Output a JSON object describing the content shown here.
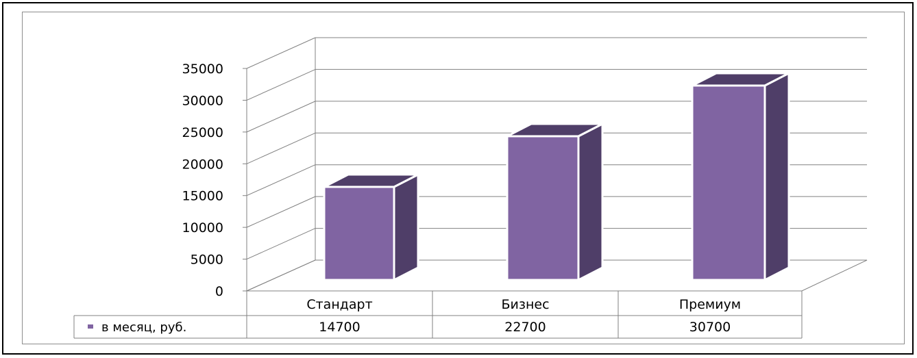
{
  "chart_data": {
    "type": "bar",
    "title": "",
    "xlabel": "",
    "ylabel": "",
    "ylim": [
      0,
      35000
    ],
    "yticks": [
      0,
      5000,
      10000,
      15000,
      20000,
      25000,
      30000,
      35000
    ],
    "categories": [
      "Стандарт",
      "Бизнес",
      "Премиум"
    ],
    "series": [
      {
        "name": "в месяц, руб.",
        "values": [
          14700,
          22700,
          30700
        ],
        "color": "#8064a2",
        "side_color": "#4f3e68"
      }
    ],
    "grid": true,
    "legend": "data-table-left",
    "style": "3d-column-with-data-table"
  }
}
